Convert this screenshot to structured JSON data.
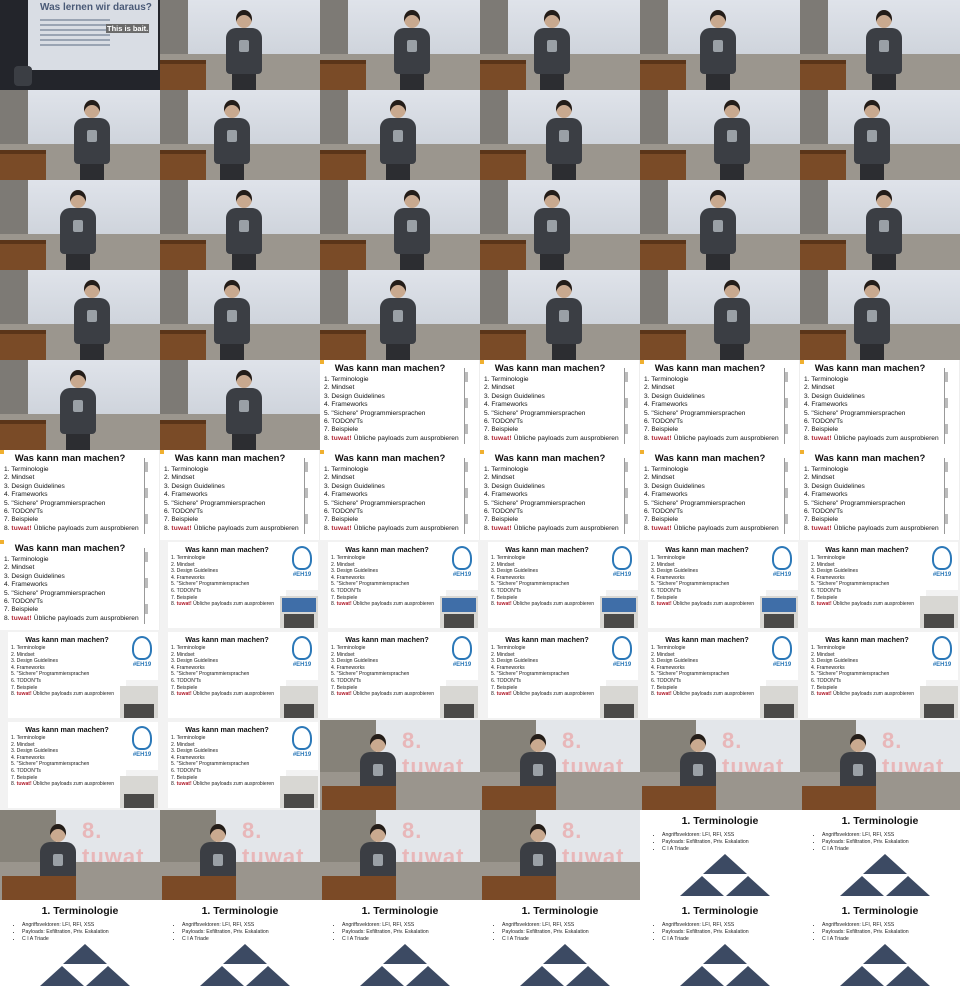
{
  "grid": {
    "columns": 6,
    "rows": 11,
    "frames": 66
  },
  "texts": {
    "intro_title": "Was lernen wir daraus?",
    "intro_bait": "This is bait.",
    "agenda_title": "Was kann man machen?",
    "agenda_items": [
      "1. Terminologie",
      "2. Mindset",
      "3. Design Guidelines",
      "4. Frameworks",
      "5. \"Sichere\" Programmiersprachen",
      "6. TODON'Ts",
      "7. Beispiele"
    ],
    "agenda_last_num": "8.",
    "agenda_last_logo": "tuwat!",
    "agenda_last_rest": "Übliche payloads zum ausprobieren",
    "eh_tag": "#EH19",
    "logo_text": "8. tuwat",
    "term_title": "1. Terminologie",
    "term_bullets": [
      "Angriffsvektoren: LFI, RFI, XSS",
      "Payloads: Exfiltration, Priv. Eskalation",
      "C I A Triade"
    ]
  },
  "frames": [
    "intro",
    "stage",
    "stage",
    "stage",
    "stage",
    "stage",
    "stage",
    "stage",
    "stage",
    "stage",
    "stage",
    "stage",
    "stage",
    "stage",
    "stage",
    "stage",
    "stage",
    "stage",
    "stage",
    "stage",
    "stage",
    "stage",
    "stage",
    "stage",
    "stage",
    "stage",
    "slide",
    "slide",
    "slide",
    "slide",
    "slide",
    "slide",
    "slide",
    "slide",
    "slide",
    "slide",
    "slide",
    "stream",
    "stream",
    "stream",
    "stream",
    "stream",
    "stream",
    "stream",
    "stream",
    "stream",
    "stream",
    "stream",
    "stream",
    "stream",
    "logo",
    "logo",
    "logo",
    "logo",
    "logo",
    "logo",
    "logo",
    "logo",
    "term",
    "term",
    "term",
    "term",
    "term",
    "term",
    "term",
    "term"
  ],
  "colors": {
    "tuwat_red": "#b01f2e",
    "eh_blue": "#2b78b8",
    "triangle": "#3c4a63",
    "lectern": "#7a4b27"
  }
}
